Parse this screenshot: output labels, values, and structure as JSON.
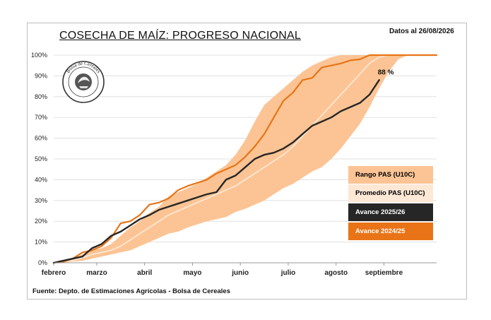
{
  "header": {
    "title": "COSECHA DE MAÍZ: PROGRESO NACIONAL",
    "date_note": "Datos al 26/08/2026"
  },
  "footer": {
    "source": "Fuente: Depto. de Estimaciones Agrícolas - Bolsa de Cereales"
  },
  "logo": {
    "text": "Bolsa de Cereales",
    "icon": "bolsa-de-cereales-seal"
  },
  "colors": {
    "range": "#fcc494",
    "average": "#fde7d5",
    "current": "#262626",
    "previous": "#e87417",
    "grid": "#e0e0e0"
  },
  "chart_data": {
    "type": "area",
    "x_unit": "week",
    "xlim": [
      0,
      40
    ],
    "ylim": [
      0,
      100
    ],
    "yticks": [
      "0%",
      "10%",
      "20%",
      "30%",
      "40%",
      "50%",
      "60%",
      "70%",
      "80%",
      "90%",
      "100%"
    ],
    "months": [
      {
        "label": "febrero",
        "x": 0
      },
      {
        "label": "marzo",
        "x": 4.5
      },
      {
        "label": "abril",
        "x": 9.5
      },
      {
        "label": "mayo",
        "x": 14.5
      },
      {
        "label": "junio",
        "x": 19.5
      },
      {
        "label": "julio",
        "x": 24.5
      },
      {
        "label": "agosto",
        "x": 29.5
      },
      {
        "label": "septiembre",
        "x": 34.5
      }
    ],
    "series": [
      {
        "name": "Rango PAS (U10C)",
        "kind": "band",
        "x": [
          0,
          1,
          2,
          3,
          4,
          5,
          6,
          7,
          8,
          9,
          10,
          11,
          12,
          13,
          14,
          15,
          16,
          17,
          18,
          19,
          20,
          21,
          22,
          23,
          24,
          25,
          26,
          27,
          28,
          29,
          30,
          31,
          32,
          33,
          34,
          35,
          36,
          37,
          38,
          39,
          40
        ],
        "low": [
          0,
          0,
          0.5,
          1,
          2,
          3,
          4,
          5,
          6,
          8,
          10,
          12,
          14,
          15,
          17,
          18.5,
          20,
          21,
          22,
          24.5,
          26,
          28,
          30,
          33,
          36,
          38,
          41,
          44,
          46,
          50,
          55,
          61,
          67,
          75,
          84,
          92,
          98,
          100,
          100,
          100,
          100
        ],
        "high": [
          0,
          1,
          2,
          4,
          6,
          7,
          9,
          13,
          17,
          20,
          24,
          27,
          32,
          34,
          36,
          38,
          41,
          44,
          47,
          52,
          59,
          68,
          76,
          80,
          84,
          88,
          92,
          95,
          97,
          99,
          100,
          100,
          100,
          100,
          100,
          100,
          100,
          100,
          100,
          100,
          100
        ]
      },
      {
        "name": "Promedio PAS (U10C)",
        "kind": "line",
        "x": [
          0,
          1,
          2,
          3,
          4,
          5,
          6,
          7,
          8,
          9,
          10,
          11,
          12,
          13,
          14,
          15,
          16,
          17,
          18,
          19,
          20,
          21,
          22,
          23,
          24,
          25,
          26,
          27,
          28,
          29,
          30,
          31,
          32,
          33,
          34,
          35,
          36,
          37,
          38,
          39,
          40
        ],
        "y": [
          0,
          0.5,
          1,
          2.5,
          4,
          5,
          6,
          8,
          11,
          14,
          17,
          20,
          23,
          25,
          27,
          29,
          31,
          33,
          35,
          37,
          40,
          43,
          46,
          49,
          52,
          56,
          61,
          66,
          71,
          76,
          81,
          86,
          91,
          96,
          99,
          100,
          100,
          100,
          100,
          100,
          100
        ]
      },
      {
        "name": "Avance 2025/26",
        "kind": "line",
        "end_label": "88 %",
        "x": [
          0,
          1,
          2,
          3,
          4,
          5,
          6,
          7,
          8,
          9,
          10,
          11,
          12,
          13,
          14,
          15,
          16,
          17,
          18,
          19,
          20,
          21,
          22,
          23,
          24,
          25,
          26,
          27,
          28,
          29,
          30,
          31,
          32,
          33,
          34
        ],
        "y": [
          0,
          1,
          2,
          3,
          7,
          9,
          13,
          15,
          18,
          21,
          23,
          25.5,
          27,
          28.5,
          30,
          31.5,
          33,
          34,
          40,
          42,
          46,
          50,
          52,
          53,
          55,
          58,
          62,
          66,
          68,
          70,
          73,
          75,
          77,
          81,
          88
        ]
      },
      {
        "name": "Avance 2024/25",
        "kind": "line",
        "x": [
          0,
          1,
          2,
          3,
          4,
          5,
          6,
          7,
          8,
          9,
          10,
          11,
          12,
          13,
          14,
          15,
          16,
          17,
          18,
          19,
          20,
          21,
          22,
          23,
          24,
          25,
          26,
          27,
          28,
          29,
          30,
          31,
          32,
          33,
          34,
          35,
          36,
          37,
          38,
          39,
          40
        ],
        "y": [
          0,
          0.5,
          2,
          5,
          6,
          8,
          12,
          19,
          20,
          23,
          28,
          29,
          31,
          35,
          37,
          38.5,
          40,
          43,
          45,
          47,
          51,
          56,
          62,
          70,
          78,
          82,
          88,
          89,
          94,
          95,
          96,
          97.5,
          98,
          100,
          100,
          100,
          100,
          100,
          100,
          100,
          100
        ]
      }
    ]
  }
}
